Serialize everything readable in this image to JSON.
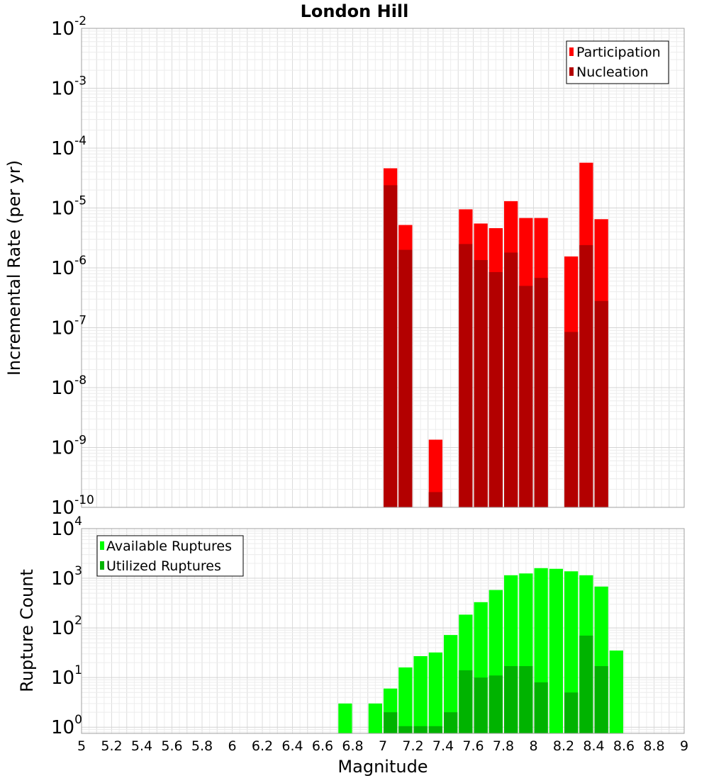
{
  "chart_data": [
    {
      "type": "bar",
      "title": "London Hill",
      "xlabel": "Magnitude",
      "ylabel": "Incremental Rate (per yr)",
      "yscale": "log",
      "xlim": [
        5,
        9
      ],
      "ylim": [
        1e-10,
        0.01
      ],
      "bin_width": 0.1,
      "ytick_labels": [
        {
          "base": "10",
          "exp": "-2",
          "value": 0.01
        },
        {
          "base": "10",
          "exp": "-3",
          "value": 0.001
        },
        {
          "base": "10",
          "exp": "-4",
          "value": 0.0001
        },
        {
          "base": "10",
          "exp": "-5",
          "value": 1e-05
        },
        {
          "base": "10",
          "exp": "-6",
          "value": 1e-06
        },
        {
          "base": "10",
          "exp": "-7",
          "value": 1e-07
        },
        {
          "base": "10",
          "exp": "-8",
          "value": 1e-08
        },
        {
          "base": "10",
          "exp": "-9",
          "value": 1e-09
        },
        {
          "base": "10",
          "exp": "-10",
          "value": 1e-10
        }
      ],
      "legend": {
        "position": "top-right",
        "entries": [
          "Participation",
          "Nucleation"
        ]
      },
      "series": [
        {
          "name": "Participation",
          "color": "#ff0000",
          "x": [
            7.05,
            7.15,
            7.35,
            7.55,
            7.65,
            7.75,
            7.85,
            7.95,
            8.05,
            8.25,
            8.35,
            8.45
          ],
          "values": [
            4.6e-05,
            5.2e-06,
            1.35e-09,
            9.5e-06,
            5.5e-06,
            4.6e-06,
            1.3e-05,
            6.8e-06,
            6.8e-06,
            1.55e-06,
            5.7e-05,
            6.5e-06
          ]
        },
        {
          "name": "Nucleation",
          "color": "#b30000",
          "x": [
            7.05,
            7.15,
            7.35,
            7.55,
            7.65,
            7.75,
            7.85,
            7.95,
            8.05,
            8.25,
            8.35,
            8.45
          ],
          "values": [
            2.4e-05,
            2e-06,
            1.8e-10,
            2.5e-06,
            1.35e-06,
            8.5e-07,
            1.8e-06,
            5e-07,
            6.8e-07,
            8.5e-08,
            2.4e-06,
            2.8e-07
          ]
        }
      ]
    },
    {
      "type": "bar",
      "title": "",
      "xlabel": "Magnitude",
      "ylabel": "Rupture Count",
      "yscale": "log",
      "xlim": [
        5,
        9
      ],
      "ylim": [
        0.75,
        10000
      ],
      "bin_width": 0.1,
      "ytick_labels": [
        {
          "base": "10",
          "exp": "4",
          "value": 10000
        },
        {
          "base": "10",
          "exp": "3",
          "value": 1000
        },
        {
          "base": "10",
          "exp": "2",
          "value": 100
        },
        {
          "base": "10",
          "exp": "1",
          "value": 10
        },
        {
          "base": "10",
          "exp": "0",
          "value": 1
        }
      ],
      "xtick_labels": [
        "5",
        "5.2",
        "5.4",
        "5.6",
        "5.8",
        "6",
        "6.2",
        "6.4",
        "6.6",
        "6.8",
        "7",
        "7.2",
        "7.4",
        "7.6",
        "7.8",
        "8",
        "8.2",
        "8.4",
        "8.6",
        "8.8",
        "9"
      ],
      "legend": {
        "position": "top-left",
        "entries": [
          "Available Ruptures",
          "Utilized Ruptures"
        ]
      },
      "series": [
        {
          "name": "Available Ruptures",
          "color": "#00ff00",
          "x": [
            6.75,
            6.95,
            7.05,
            7.15,
            7.25,
            7.35,
            7.45,
            7.55,
            7.65,
            7.75,
            7.85,
            7.95,
            8.05,
            8.15,
            8.25,
            8.35,
            8.45,
            8.55
          ],
          "values": [
            3,
            3,
            6,
            16,
            27,
            32,
            72,
            185,
            330,
            580,
            1150,
            1250,
            1600,
            1550,
            1380,
            1150,
            680,
            35
          ]
        },
        {
          "name": "Utilized Ruptures",
          "color": "#00b300",
          "x": [
            7.05,
            7.15,
            7.25,
            7.35,
            7.45,
            7.55,
            7.65,
            7.75,
            7.85,
            7.95,
            8.05,
            8.25,
            8.35,
            8.45
          ],
          "values": [
            2,
            1.05,
            1.05,
            1.05,
            2,
            14,
            10,
            11,
            17,
            17,
            8,
            5,
            70,
            17
          ]
        }
      ]
    }
  ]
}
